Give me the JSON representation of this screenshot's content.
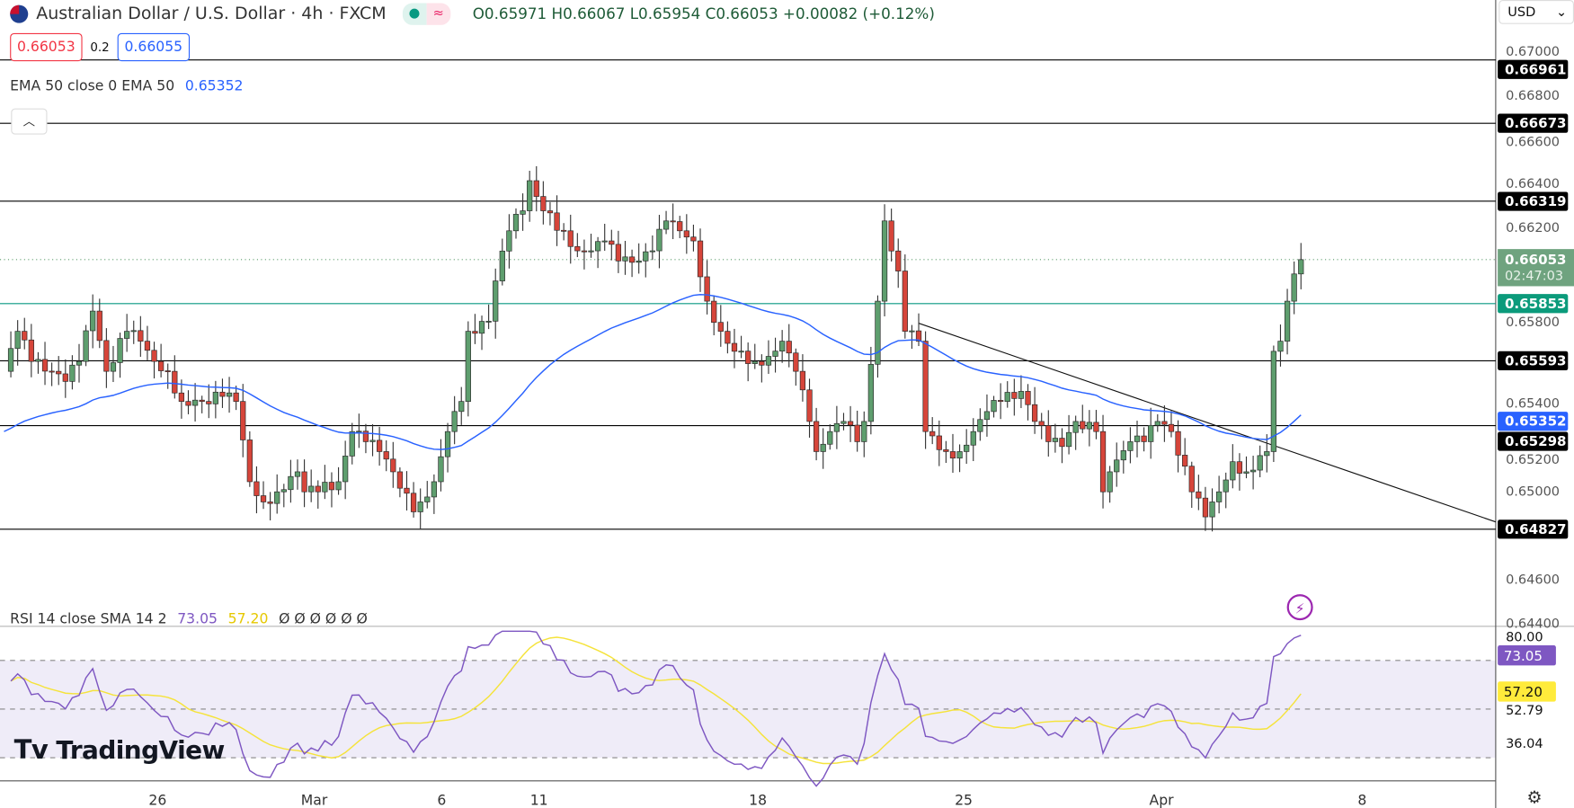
{
  "header": {
    "symbol_title": "Australian Dollar / U.S. Dollar · 4h · FXCM",
    "ohlc": "O0.65971 H0.66067 L0.65954 C0.66053 +0.00082 (+0.12%)",
    "market_status_icon": "green-dot-icon",
    "replay_icon": "wave-icon"
  },
  "trade": {
    "sell": "0.66053",
    "spread": "0.2",
    "buy": "0.66055"
  },
  "indicators": {
    "ema_label": "EMA 50 close 0 EMA 50",
    "ema_value": "0.65352",
    "rsi_label": "RSI 14 close SMA 14 2",
    "rsi_value": "73.05",
    "rsi_sma_value": "57.20",
    "rsi_extras": "Ø Ø Ø Ø Ø Ø"
  },
  "currency": "USD",
  "colors": {
    "up": "#5e9e6e",
    "down": "#d6453a",
    "ema": "#2962ff",
    "rsi": "#7e57c2",
    "rsi_sma": "#f5e33b",
    "accent_teal": "#089981"
  },
  "price_axis": {
    "ticks": [
      "0.67000",
      "0.66800",
      "0.66600",
      "0.66400",
      "0.66200",
      "0.65800",
      "0.65400",
      "0.65200",
      "0.65000",
      "0.64600",
      "0.64400"
    ],
    "levels": [
      "0.66961",
      "0.66673",
      "0.66319",
      "0.65593",
      "0.65298",
      "0.64827"
    ],
    "support_level": "0.65853",
    "last_price": "0.66053",
    "countdown": "02:47:03",
    "ema_badge": "0.65352"
  },
  "rsi_axis": {
    "ticks": [
      "80.00",
      "52.79",
      "36.04"
    ],
    "rsi_badge": "73.05",
    "sma_badge": "57.20"
  },
  "time_axis": [
    "26",
    "Mar",
    "6",
    "11",
    "18",
    "25",
    "Apr",
    "8"
  ],
  "brand": "TradingView",
  "chart_data": {
    "type": "candlestick",
    "ylim": [
      0.644,
      0.6705
    ],
    "close_path": [
      [
        0,
        0.65545
      ],
      [
        2,
        0.65727
      ],
      [
        4,
        0.6559
      ],
      [
        7,
        0.65545
      ],
      [
        9,
        0.65499
      ],
      [
        11,
        0.6559
      ],
      [
        13,
        0.65819
      ],
      [
        15,
        0.65545
      ],
      [
        18,
        0.65727
      ],
      [
        20,
        0.65682
      ],
      [
        22,
        0.6559
      ],
      [
        24,
        0.65545
      ],
      [
        26,
        0.65408
      ],
      [
        29,
        0.65408
      ],
      [
        32,
        0.65431
      ],
      [
        34,
        0.65408
      ],
      [
        36,
        0.65043
      ],
      [
        38,
        0.64951
      ],
      [
        40,
        0.64997
      ],
      [
        43,
        0.65088
      ],
      [
        44,
        0.64997
      ],
      [
        46,
        0.64997
      ],
      [
        49,
        0.65043
      ],
      [
        51,
        0.65271
      ],
      [
        53,
        0.65225
      ],
      [
        55,
        0.6518
      ],
      [
        57,
        0.65088
      ],
      [
        60,
        0.64906
      ],
      [
        61,
        0.64951
      ],
      [
        63,
        0.65043
      ],
      [
        65,
        0.65271
      ],
      [
        67,
        0.65408
      ],
      [
        68,
        0.65727
      ],
      [
        71,
        0.65773
      ],
      [
        72,
        0.65956
      ],
      [
        74,
        0.66184
      ],
      [
        76,
        0.66275
      ],
      [
        77,
        0.66412
      ],
      [
        79,
        0.66275
      ],
      [
        82,
        0.66184
      ],
      [
        84,
        0.66093
      ],
      [
        86,
        0.66093
      ],
      [
        88,
        0.66138
      ],
      [
        90,
        0.66047
      ],
      [
        93,
        0.66047
      ],
      [
        95,
        0.66093
      ],
      [
        97,
        0.66229
      ],
      [
        99,
        0.66184
      ],
      [
        101,
        0.66138
      ],
      [
        103,
        0.65864
      ],
      [
        105,
        0.65727
      ],
      [
        107,
        0.65636
      ],
      [
        110,
        0.6559
      ],
      [
        112,
        0.65613
      ],
      [
        114,
        0.65682
      ],
      [
        116,
        0.65545
      ],
      [
        118,
        0.65317
      ],
      [
        119,
        0.6518
      ],
      [
        121,
        0.65271
      ],
      [
        123,
        0.65317
      ],
      [
        125,
        0.65225
      ],
      [
        126,
        0.65317
      ],
      [
        128,
        0.65864
      ],
      [
        129,
        0.66229
      ],
      [
        131,
        0.66001
      ],
      [
        132,
        0.65727
      ],
      [
        134,
        0.65682
      ],
      [
        135,
        0.65271
      ],
      [
        138,
        0.6518
      ],
      [
        140,
        0.6518
      ],
      [
        142,
        0.65271
      ],
      [
        144,
        0.65362
      ],
      [
        146,
        0.65408
      ],
      [
        149,
        0.65454
      ],
      [
        151,
        0.65317
      ],
      [
        153,
        0.65225
      ],
      [
        155,
        0.65203
      ],
      [
        157,
        0.65317
      ],
      [
        160,
        0.65271
      ],
      [
        161,
        0.64997
      ],
      [
        162,
        0.65088
      ],
      [
        165,
        0.65225
      ],
      [
        167,
        0.65225
      ],
      [
        169,
        0.65317
      ],
      [
        171,
        0.65271
      ],
      [
        174,
        0.64997
      ],
      [
        176,
        0.64883
      ],
      [
        178,
        0.64997
      ],
      [
        180,
        0.65134
      ],
      [
        182,
        0.65088
      ],
      [
        185,
        0.6518
      ],
      [
        186,
        0.65636
      ],
      [
        187,
        0.65682
      ],
      [
        188,
        0.65864
      ],
      [
        190,
        0.66053
      ]
    ],
    "ema_period": 50,
    "rsi_period": 14,
    "rsi_sma_period": 14,
    "rsi_ylim": [
      20,
      84
    ],
    "rsi_bands": [
      70,
      50,
      30
    ]
  }
}
